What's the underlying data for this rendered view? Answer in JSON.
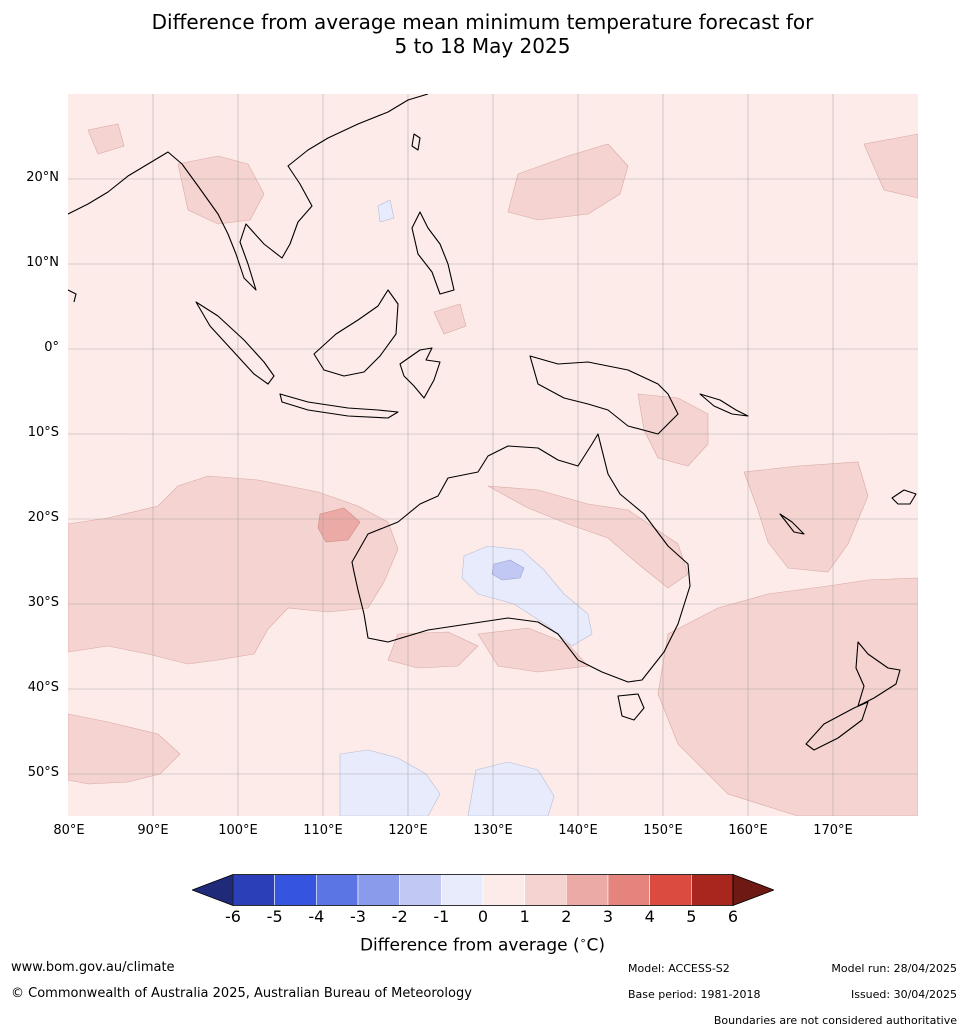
{
  "title": {
    "line1": "Difference from average mean minimum temperature forecast for",
    "line2": "5 to 18 May 2025"
  },
  "map": {
    "latitude_labels": [
      "20°N",
      "10°N",
      "0°",
      "10°S",
      "20°S",
      "30°S",
      "40°S",
      "50°S"
    ],
    "longitude_labels": [
      "80°E",
      "90°E",
      "100°E",
      "110°E",
      "120°E",
      "130°E",
      "140°E",
      "150°E",
      "160°E",
      "170°E"
    ],
    "background_color": "#fcebe9"
  },
  "colorbar": {
    "ticks": [
      "-6",
      "-5",
      "-4",
      "-3",
      "-2",
      "-1",
      "0",
      "1",
      "2",
      "3",
      "4",
      "5",
      "6"
    ],
    "colors": [
      "#1f2a78",
      "#2a3fb8",
      "#3554e0",
      "#5c75e4",
      "#8a9bec",
      "#c0c8f3",
      "#e8ebfb",
      "#fcebe9",
      "#f5d3d0",
      "#ebaaa5",
      "#e4847d",
      "#db4b3f",
      "#a8261d",
      "#6e1914"
    ],
    "label": "Difference from average (",
    "label_unit": "∘",
    "label_end": "C)"
  },
  "footer": {
    "website": "www.bom.gov.au/climate",
    "copyright": "© Commonwealth of Australia 2025, Australian Bureau of Meteorology",
    "model": "Model: ACCESS-S2",
    "base_period": "Base period: 1981-2018",
    "model_run": "Model run: 28/04/2025",
    "issued": "Issued: 30/04/2025",
    "disclaimer": "Boundaries are not considered authoritative"
  }
}
